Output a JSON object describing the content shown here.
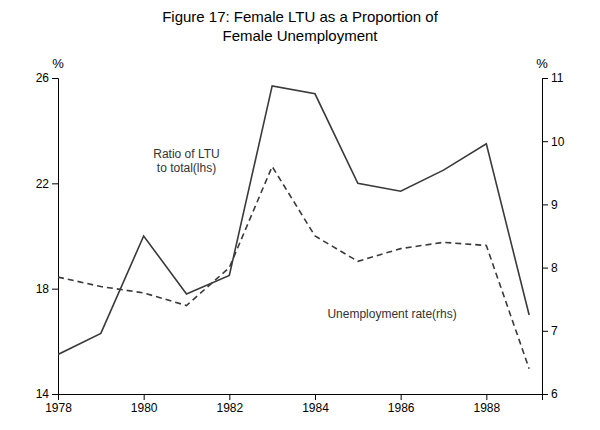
{
  "chart_data": {
    "type": "line",
    "title": "Figure 17: Female LTU as a Proportion of\nFemale Unemployment",
    "x": [
      1978,
      1979,
      1980,
      1981,
      1982,
      1983,
      1984,
      1985,
      1986,
      1987,
      1988,
      1989
    ],
    "series": [
      {
        "color": "#3a3a3a",
        "line_style": "solid",
        "values": [
          15.5,
          16.3,
          20.0,
          17.8,
          18.5,
          25.7,
          25.4,
          22.0,
          21.7,
          22.5,
          23.5,
          17.0
        ]
      },
      {
        "color": "#3a3a3a",
        "line_style": "dashed",
        "axis": "y2",
        "values": [
          7.85,
          7.7,
          7.6,
          7.4,
          8.0,
          9.6,
          8.5,
          8.1,
          8.3,
          8.4,
          8.35,
          6.4
        ]
      }
    ],
    "xlim": [
      1978,
      1989.3
    ],
    "xticks": [
      1978,
      1980,
      1982,
      1984,
      1986,
      1988
    ],
    "ylim": [
      14,
      26
    ],
    "yticks": [
      14,
      18,
      22,
      26
    ],
    "y2lim": [
      6,
      11
    ],
    "y2ticks": [
      6,
      7,
      8,
      9,
      10,
      11
    ],
    "ylabel": "%",
    "y2label": "%",
    "grid": false,
    "annotations": [
      {
        "text": "Ratio of LTU\nto total(lhs)",
        "x": 1981.0,
        "y": 22.8
      },
      {
        "text": "Unemployment rate(rhs)",
        "x": 1985.8,
        "y": 7.25,
        "axis": "y2"
      }
    ]
  }
}
